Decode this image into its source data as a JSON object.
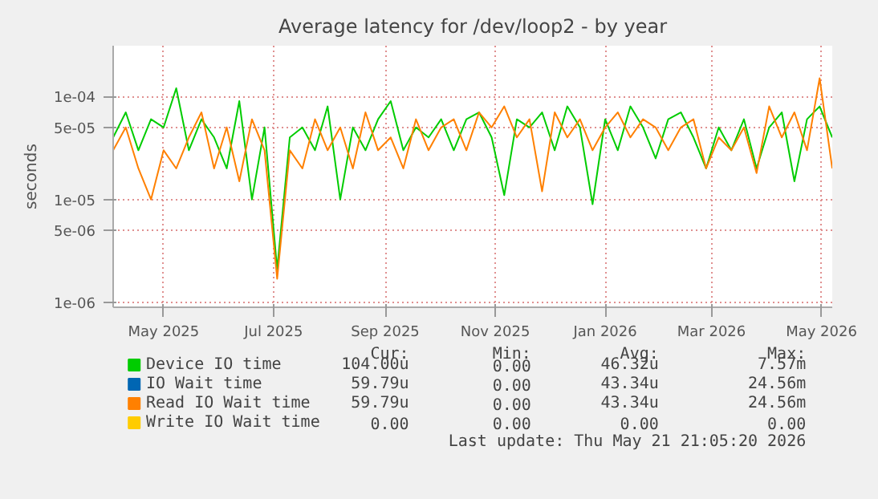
{
  "chart_data": {
    "type": "line",
    "title": "Average latency for /dev/loop2 - by year",
    "ylabel": "seconds",
    "x": [
      "2025-04-03",
      "2025-04-10",
      "2025-04-17",
      "2025-04-24",
      "2025-05-01",
      "2025-05-08",
      "2025-05-15",
      "2025-05-22",
      "2025-05-29",
      "2025-06-05",
      "2025-06-12",
      "2025-06-19",
      "2025-06-26",
      "2025-07-03",
      "2025-07-10",
      "2025-07-17",
      "2025-07-24",
      "2025-07-31",
      "2025-08-07",
      "2025-08-14",
      "2025-08-21",
      "2025-08-28",
      "2025-09-04",
      "2025-09-11",
      "2025-09-18",
      "2025-09-25",
      "2025-10-02",
      "2025-10-09",
      "2025-10-16",
      "2025-10-23",
      "2025-10-30",
      "2025-11-06",
      "2025-11-13",
      "2025-11-20",
      "2025-11-27",
      "2025-12-04",
      "2025-12-11",
      "2025-12-18",
      "2025-12-25",
      "2026-01-01",
      "2026-01-08",
      "2026-01-15",
      "2026-01-22",
      "2026-01-29",
      "2026-02-05",
      "2026-02-12",
      "2026-02-19",
      "2026-02-26",
      "2026-03-05",
      "2026-03-12",
      "2026-03-19",
      "2026-03-26",
      "2026-04-02",
      "2026-04-09",
      "2026-04-16",
      "2026-04-23",
      "2026-04-30",
      "2026-05-07"
    ],
    "series": [
      {
        "name": "Device IO time",
        "color": "#00cc00",
        "values": [
          4e-05,
          7e-05,
          3e-05,
          6e-05,
          5e-05,
          0.00012,
          3e-05,
          6e-05,
          4e-05,
          2e-05,
          9e-05,
          1e-05,
          5e-05,
          2.1e-06,
          4e-05,
          5e-05,
          3e-05,
          8e-05,
          1e-05,
          5e-05,
          3e-05,
          6e-05,
          9e-05,
          3e-05,
          5e-05,
          4e-05,
          6e-05,
          3e-05,
          6e-05,
          7e-05,
          4e-05,
          1.1e-05,
          6e-05,
          5e-05,
          7e-05,
          3e-05,
          8e-05,
          5e-05,
          9e-06,
          6e-05,
          3e-05,
          8e-05,
          5e-05,
          2.5e-05,
          6e-05,
          7e-05,
          4e-05,
          2e-05,
          5e-05,
          3e-05,
          6e-05,
          2e-05,
          5e-05,
          7e-05,
          1.5e-05,
          6e-05,
          8e-05,
          4e-05
        ]
      },
      {
        "name": "IO Wait time",
        "color": "#0066b3",
        "values": [
          null,
          null,
          null,
          null,
          null,
          null,
          null,
          null,
          null,
          null,
          null,
          null,
          null,
          null,
          null,
          null,
          null,
          null,
          null,
          null,
          null,
          null,
          null,
          null,
          null,
          null,
          null,
          null,
          null,
          null,
          null,
          null,
          null,
          null,
          null,
          null,
          null,
          null,
          null,
          null,
          null,
          null,
          null,
          null,
          null,
          null,
          null,
          null,
          null,
          null,
          null,
          null,
          null,
          null,
          null,
          null,
          null,
          null
        ]
      },
      {
        "name": "Read IO Wait time",
        "color": "#ff8000",
        "values": [
          3e-05,
          5e-05,
          2e-05,
          1e-05,
          3e-05,
          2e-05,
          4e-05,
          7e-05,
          2e-05,
          5e-05,
          1.5e-05,
          6e-05,
          3e-05,
          1.7e-06,
          3e-05,
          2e-05,
          6e-05,
          3e-05,
          5e-05,
          2e-05,
          7e-05,
          3e-05,
          4e-05,
          2e-05,
          6e-05,
          3e-05,
          5e-05,
          6e-05,
          3e-05,
          7e-05,
          5e-05,
          8e-05,
          4e-05,
          6e-05,
          1.2e-05,
          7e-05,
          4e-05,
          6e-05,
          3e-05,
          5e-05,
          7e-05,
          4e-05,
          6e-05,
          5e-05,
          3e-05,
          5e-05,
          6e-05,
          2e-05,
          4e-05,
          3e-05,
          5e-05,
          1.8e-05,
          8e-05,
          4e-05,
          7e-05,
          3e-05,
          0.00015,
          2e-05
        ]
      },
      {
        "name": "Write IO Wait time",
        "color": "#ffcc00",
        "values": [
          null,
          null,
          null,
          null,
          null,
          null,
          null,
          null,
          null,
          null,
          null,
          null,
          null,
          null,
          null,
          null,
          null,
          null,
          null,
          null,
          null,
          null,
          null,
          null,
          null,
          null,
          null,
          null,
          null,
          null,
          null,
          null,
          null,
          null,
          null,
          null,
          null,
          null,
          null,
          null,
          null,
          null,
          null,
          null,
          null,
          null,
          null,
          null,
          null,
          null,
          null,
          null,
          null,
          null,
          null,
          null,
          null,
          null
        ]
      }
    ],
    "xlim": [
      "2025-04-03",
      "2026-05-07"
    ],
    "xticks": [
      {
        "value": "2025-05-01",
        "label": "May 2025"
      },
      {
        "value": "2025-07-01",
        "label": "Jul 2025"
      },
      {
        "value": "2025-09-01",
        "label": "Sep 2025"
      },
      {
        "value": "2025-11-01",
        "label": "Nov 2025"
      },
      {
        "value": "2026-01-01",
        "label": "Jan 2026"
      },
      {
        "value": "2026-03-01",
        "label": "Mar 2026"
      },
      {
        "value": "2026-05-01",
        "label": "May 2026"
      }
    ],
    "ylim": [
      9e-07,
      0.00031
    ],
    "yticks": [
      {
        "value": 1e-06,
        "label": "1e-06"
      },
      {
        "value": 5e-06,
        "label": "5e-06"
      },
      {
        "value": 1e-05,
        "label": "1e-05"
      },
      {
        "value": 5e-05,
        "label": "5e-05"
      },
      {
        "value": 0.0001,
        "label": "1e-04"
      }
    ],
    "log": "y",
    "grid": true,
    "legend": "bottom",
    "line_style": "solid",
    "marker": "none",
    "annotations": [
      "Cur: Min: Avg: Max:",
      "104.00u 0.00 46.32u 7.57m",
      "59.79u 0.00 43.34u 24.56m",
      "59.79u 0.00 43.34u 24.56m",
      "0.00 0.00 0.00 0.00",
      "Last update: Thu May 21 21:05:20 2026"
    ]
  }
}
